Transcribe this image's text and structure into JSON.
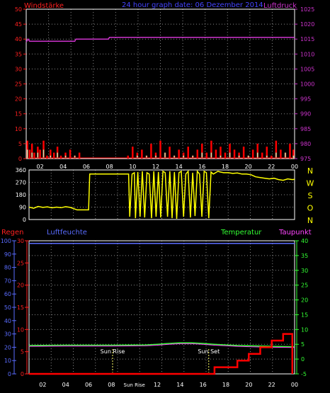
{
  "header": {
    "left": "Windstärke",
    "center": "24 hour graph date: 06 Dezember 2014",
    "right": "Luftdruck"
  },
  "colors": {
    "background": "#000000",
    "grid": "#888888",
    "frame": "#ffffff",
    "windGust": "#ff0000",
    "windAvg": "#b8f0b8",
    "pressure": "#cc33cc",
    "direction": "#ffff00",
    "rain": "#ff0000",
    "humidity": "#5a6cff",
    "temperature": "#33ff33",
    "dewpoint": "#ff44ff",
    "headerBlue": "#4444ff",
    "sunMarker": "#ffff66"
  },
  "time_ticks": [
    "02",
    "04",
    "06",
    "08",
    "10",
    "12",
    "14",
    "16",
    "18",
    "20",
    "22",
    "00"
  ],
  "bottom_time_ticks": [
    "02",
    "04",
    "06",
    "08",
    "Sun Rise",
    "12",
    "14",
    "16",
    "18",
    "20",
    "22",
    "00"
  ],
  "wind_ticks": [
    "0",
    "5",
    "10",
    "15",
    "20",
    "25",
    "30",
    "35",
    "40",
    "45",
    "50"
  ],
  "pressure_ticks": [
    "975",
    "980",
    "985",
    "990",
    "995",
    "1000",
    "1005",
    "1010",
    "1015",
    "1020",
    "1025"
  ],
  "dir_ticks": [
    "0",
    "90",
    "180",
    "270",
    "360"
  ],
  "dir_labels": [
    "N",
    "W",
    "S",
    "O",
    "N"
  ],
  "bottom_legend": {
    "rain": "Regen",
    "humidity": "Luftfeuchte",
    "temperature": "Temperatur",
    "dewpoint": "Taupunkt"
  },
  "humidity_ticks": [
    "0",
    "10",
    "20",
    "30",
    "40",
    "50",
    "60",
    "70",
    "80",
    "90",
    "100"
  ],
  "rain_ticks": [
    "0",
    "5",
    "10",
    "15",
    "20",
    "25",
    "30"
  ],
  "temp_ticks": [
    "-5",
    "0",
    "5",
    "10",
    "15",
    "20",
    "25",
    "30",
    "35",
    "40"
  ],
  "sun_rise_label": "Sun Rise",
  "sun_set_label": "Sun Set",
  "chart_data": [
    {
      "type": "line",
      "title": "24 hour graph date: 06 Dezember 2014",
      "x_range": [
        0.8,
        24
      ],
      "series": [
        {
          "name": "Windstärke",
          "axis": "left",
          "ylim": [
            0,
            50
          ],
          "x": [
            0.9,
            1.1,
            1.3,
            1.5,
            1.8,
            2.0,
            2.3,
            2.6,
            2.9,
            3.2,
            3.5,
            3.8,
            4.2,
            4.6,
            5.0,
            5.4,
            5.8,
            6.5,
            7.2,
            8.0,
            8.6,
            9.2,
            9.6,
            10.0,
            10.4,
            10.8,
            11.2,
            11.6,
            12.0,
            12.4,
            12.8,
            13.2,
            13.6,
            14.0,
            14.4,
            14.8,
            15.2,
            15.6,
            16.0,
            16.4,
            16.8,
            17.2,
            17.6,
            18.0,
            18.4,
            18.8,
            19.2,
            19.6,
            20.0,
            20.4,
            20.8,
            21.2,
            21.6,
            22.0,
            22.4,
            22.8,
            23.2,
            23.6,
            23.9
          ],
          "values": [
            6,
            3,
            5,
            2,
            4,
            3,
            6,
            1,
            3,
            2,
            4,
            1,
            2,
            3,
            1,
            2,
            0,
            0,
            0,
            0,
            0,
            0,
            1,
            4,
            2,
            3,
            1,
            5,
            2,
            6,
            2,
            4,
            1,
            3,
            2,
            4,
            1,
            3,
            5,
            2,
            6,
            3,
            4,
            2,
            5,
            3,
            2,
            4,
            1,
            3,
            5,
            2,
            4,
            1,
            6,
            3,
            2,
            5,
            3
          ]
        },
        {
          "name": "Windstärke (avg)",
          "axis": "left",
          "ylim": [
            0,
            50
          ],
          "x": [
            0.9,
            1.3,
            1.8,
            2.3,
            2.9,
            3.5,
            4.2,
            5.0,
            5.8,
            8.0,
            9.6,
            10.4,
            11.2,
            12.0,
            12.8,
            13.6,
            14.4,
            15.2,
            16.0,
            16.8,
            17.6,
            18.4,
            19.2,
            20.0,
            20.8,
            21.6,
            22.4,
            23.2,
            23.9
          ],
          "values": [
            3,
            2,
            2,
            3,
            1,
            2,
            1,
            1,
            0,
            0,
            0,
            1,
            1,
            1,
            2,
            1,
            1,
            1,
            2,
            2,
            1,
            2,
            1,
            1,
            2,
            1,
            2,
            2,
            1
          ]
        },
        {
          "name": "Luftdruck",
          "axis": "right",
          "ylim": [
            975,
            1025
          ],
          "x": [
            0.8,
            0.95,
            1.1,
            5.0,
            5.1,
            7.9,
            8.0,
            24.0
          ],
          "values": [
            1014.0,
            1015.0,
            1014.3,
            1014.3,
            1015.0,
            1015.0,
            1015.6,
            1015.6
          ]
        }
      ]
    },
    {
      "type": "line",
      "x_range": [
        0.8,
        24
      ],
      "ylim": [
        0,
        360
      ],
      "series": [
        {
          "name": "Windrichtung",
          "x": [
            0.8,
            1.2,
            1.6,
            2.0,
            2.4,
            2.8,
            3.2,
            3.6,
            4.0,
            4.4,
            5.0,
            5.8,
            6.0,
            6.1,
            7.0,
            8.0,
            9.5,
            9.6,
            9.8,
            10.0,
            10.1,
            10.3,
            10.5,
            10.7,
            10.9,
            11.1,
            11.3,
            11.5,
            11.7,
            11.9,
            12.1,
            12.3,
            12.5,
            12.7,
            12.9,
            13.1,
            13.3,
            13.5,
            13.7,
            13.9,
            14.1,
            14.3,
            14.5,
            14.7,
            14.9,
            15.1,
            15.3,
            15.5,
            15.7,
            15.9,
            16.1,
            16.3,
            16.5,
            16.7,
            16.9,
            17.1,
            17.3,
            17.5,
            17.8,
            18.2,
            18.6,
            19.0,
            19.4,
            19.8,
            20.2,
            20.6,
            21.0,
            21.4,
            21.8,
            22.2,
            22.6,
            23.0,
            23.4,
            23.8,
            24.0
          ],
          "values": [
            90,
            82,
            95,
            88,
            92,
            85,
            90,
            86,
            93,
            88,
            70,
            70,
            70,
            330,
            330,
            330,
            330,
            20,
            330,
            340,
            10,
            345,
            20,
            350,
            15,
            340,
            330,
            10,
            350,
            20,
            345,
            15,
            350,
            340,
            20,
            350,
            10,
            345,
            5,
            340,
            350,
            20,
            330,
            350,
            15,
            340,
            25,
            350,
            330,
            20,
            350,
            340,
            10,
            345,
            330,
            340,
            350,
            345,
            340,
            340,
            335,
            338,
            330,
            330,
            325,
            310,
            305,
            300,
            295,
            300,
            290,
            285,
            295,
            290,
            292
          ]
        }
      ]
    },
    {
      "type": "line",
      "x_range": [
        0.8,
        24
      ],
      "series": [
        {
          "name": "Regen",
          "axis": "left-inner",
          "ylim": [
            0,
            30
          ],
          "x": [
            0.8,
            17.0,
            17.0,
            19.0,
            19.0,
            20.0,
            20.0,
            21.0,
            21.0,
            22.0,
            22.0,
            23.0,
            23.0,
            23.8,
            23.8
          ],
          "values": [
            0,
            0,
            1.5,
            1.5,
            3,
            3,
            4.5,
            4.5,
            6,
            6,
            7.5,
            7.5,
            9,
            9,
            0
          ]
        },
        {
          "name": "Luftfeuchte",
          "axis": "left-outer",
          "ylim": [
            0,
            100
          ],
          "x": [
            0.8,
            24.0
          ],
          "values": [
            98,
            98
          ]
        },
        {
          "name": "Temperatur",
          "axis": "right",
          "ylim": [
            -5,
            40
          ],
          "x": [
            0.8,
            4,
            8,
            11,
            12,
            13,
            14,
            15,
            16,
            17,
            18,
            19,
            20,
            22,
            24
          ],
          "values": [
            4.6,
            4.7,
            4.7,
            4.8,
            5.0,
            5.3,
            5.5,
            5.5,
            5.3,
            5.0,
            4.8,
            4.6,
            4.5,
            4.3,
            4.2
          ]
        },
        {
          "name": "Taupunkt",
          "axis": "right",
          "ylim": [
            -5,
            40
          ],
          "x": [
            0.8,
            4,
            8,
            11,
            12,
            13,
            14,
            15,
            16,
            17,
            18,
            19,
            20,
            22,
            24
          ],
          "values": [
            4.3,
            4.4,
            4.4,
            4.5,
            4.7,
            5.0,
            5.2,
            5.2,
            5.0,
            4.7,
            4.5,
            4.3,
            4.2,
            4.0,
            3.9
          ]
        }
      ],
      "annotations": [
        {
          "label": "Sun Rise",
          "x": 8.1
        },
        {
          "label": "Sun Set",
          "x": 16.5
        }
      ]
    }
  ]
}
